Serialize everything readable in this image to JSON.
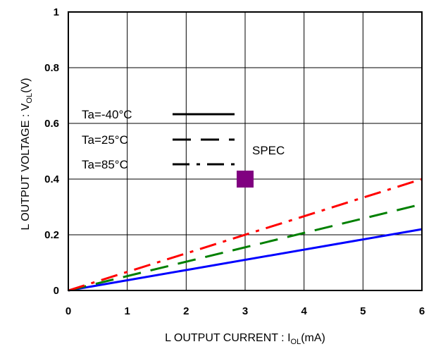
{
  "chart_data": {
    "type": "line",
    "xlim": [
      0,
      6
    ],
    "ylim": [
      0,
      1
    ],
    "x_ticks": [
      "0",
      "1",
      "2",
      "3",
      "4",
      "5",
      "6"
    ],
    "y_ticks": [
      "0",
      "0.2",
      "0.4",
      "0.6",
      "0.8",
      "1"
    ],
    "x_tick_values": [
      0,
      1,
      2,
      3,
      4,
      5,
      6
    ],
    "y_tick_values": [
      0,
      0.2,
      0.4,
      0.6,
      0.8,
      1
    ],
    "xlabel_main": "L OUTPUT CURRENT : I",
    "xlabel_sub": "OL",
    "xlabel_unit": "(mA)",
    "ylabel_main": "L OUTPUT VOLTAGE : V",
    "ylabel_sub": "OL",
    "ylabel_unit": "(V)",
    "grid": true,
    "legend_placement": "upper-left",
    "series": [
      {
        "name": "Ta=-40°C",
        "style": "solid",
        "color": "#0000ff",
        "x": [
          0,
          6
        ],
        "y": [
          0,
          0.22
        ]
      },
      {
        "name": "Ta=25°C",
        "style": "dashed",
        "color": "#008000",
        "x": [
          0,
          6
        ],
        "y": [
          0,
          0.31
        ]
      },
      {
        "name": "Ta=85°C",
        "style": "dashdot",
        "color": "#ff0000",
        "x": [
          0,
          6
        ],
        "y": [
          0,
          0.4
        ]
      }
    ],
    "spec_point": {
      "label": "SPEC",
      "x": 3,
      "y": 0.4,
      "color": "#800080"
    }
  }
}
